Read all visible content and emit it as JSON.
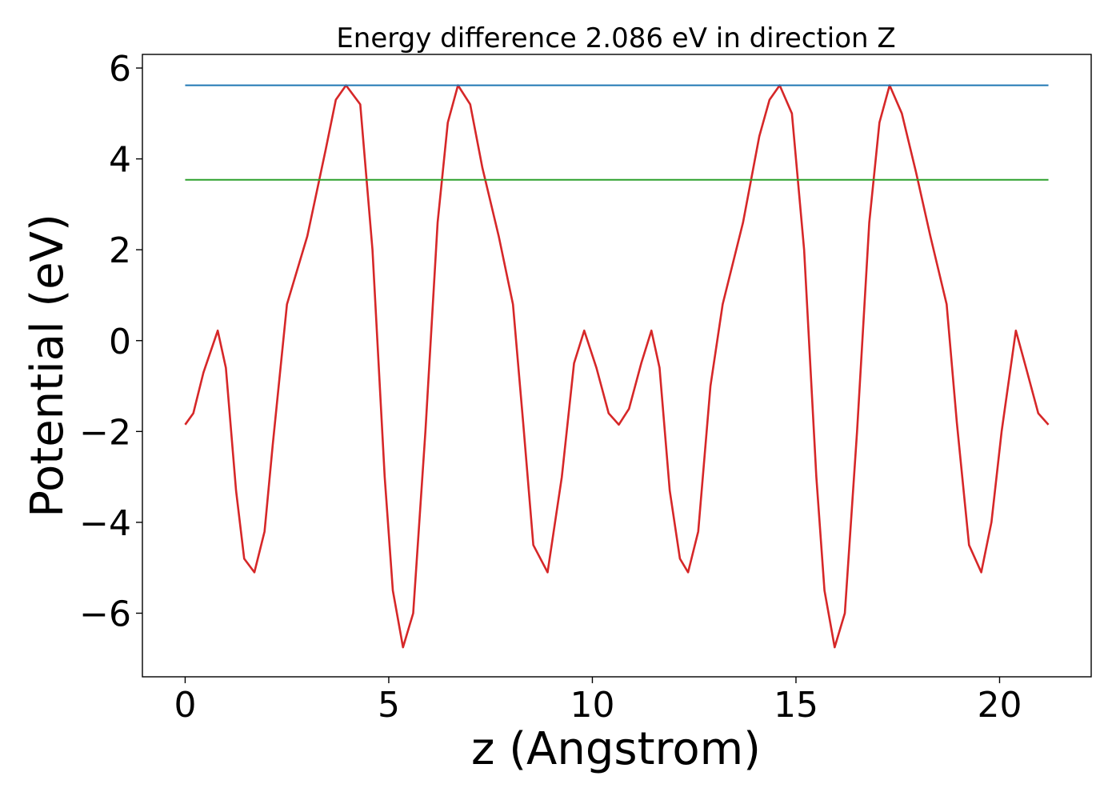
{
  "chart_data": {
    "type": "line",
    "title": "Energy difference 2.086 eV in direction Z",
    "xlabel": "z (Angstrom)",
    "ylabel": "Potential (eV)",
    "xlim": [
      -1.05,
      22.25
    ],
    "ylim": [
      -7.4,
      6.3
    ],
    "xticks": [
      0,
      5,
      10,
      15,
      20
    ],
    "xtick_labels": [
      "0",
      "5",
      "10",
      "15",
      "20"
    ],
    "yticks": [
      -6,
      -4,
      -2,
      0,
      2,
      4,
      6
    ],
    "ytick_labels": [
      "−6",
      "−4",
      "−2",
      "0",
      "2",
      "4",
      "6"
    ],
    "grid": false,
    "series": [
      {
        "color": "#d62728",
        "x": [
          0,
          0.2,
          0.45,
          0.8,
          1.0,
          1.25,
          1.45,
          1.7,
          1.95,
          2.15,
          2.5,
          3.0,
          3.45,
          3.7,
          3.95,
          4.3,
          4.6,
          4.9,
          5.1,
          5.35,
          5.6,
          5.9,
          6.2,
          6.45,
          6.7,
          7.0,
          7.3,
          7.7,
          8.05,
          8.3,
          8.55,
          8.9,
          9.25,
          9.55,
          9.8,
          10.1,
          10.4,
          10.65,
          10.9,
          11.2,
          11.45,
          11.65,
          11.9,
          12.15,
          12.35,
          12.6,
          12.9,
          13.2,
          13.7,
          14.1,
          14.35,
          14.6,
          14.9,
          15.2,
          15.5,
          15.7,
          15.95,
          16.2,
          16.5,
          16.8,
          17.05,
          17.3,
          17.6,
          17.95,
          18.3,
          18.7,
          18.95,
          19.25,
          19.55,
          19.8,
          20.05,
          20.4,
          20.65,
          20.95,
          21.2
        ],
        "y": [
          -1.85,
          -1.6,
          -0.7,
          0.22,
          -0.6,
          -3.3,
          -4.8,
          -5.1,
          -4.2,
          -2.3,
          0.8,
          2.3,
          4.2,
          5.3,
          5.62,
          5.2,
          2.0,
          -3.0,
          -5.5,
          -6.75,
          -6.0,
          -2.0,
          2.6,
          4.8,
          5.62,
          5.2,
          3.8,
          2.3,
          0.8,
          -1.8,
          -4.5,
          -5.1,
          -3.0,
          -0.5,
          0.22,
          -0.6,
          -1.6,
          -1.85,
          -1.5,
          -0.5,
          0.22,
          -0.6,
          -3.3,
          -4.8,
          -5.1,
          -4.2,
          -1.0,
          0.8,
          2.6,
          4.5,
          5.3,
          5.62,
          5.0,
          2.0,
          -3.0,
          -5.5,
          -6.75,
          -6.0,
          -2.0,
          2.6,
          4.8,
          5.62,
          5.0,
          3.7,
          2.3,
          0.8,
          -1.8,
          -4.5,
          -5.1,
          -4.0,
          -2.0,
          0.22,
          -0.6,
          -1.6,
          -1.85
        ]
      },
      {
        "color": "#1f77b4",
        "x": [
          0,
          21.2
        ],
        "y": [
          5.62,
          5.62
        ]
      },
      {
        "color": "#2ca02c",
        "x": [
          0,
          21.2
        ],
        "y": [
          3.54,
          3.54
        ]
      }
    ]
  }
}
